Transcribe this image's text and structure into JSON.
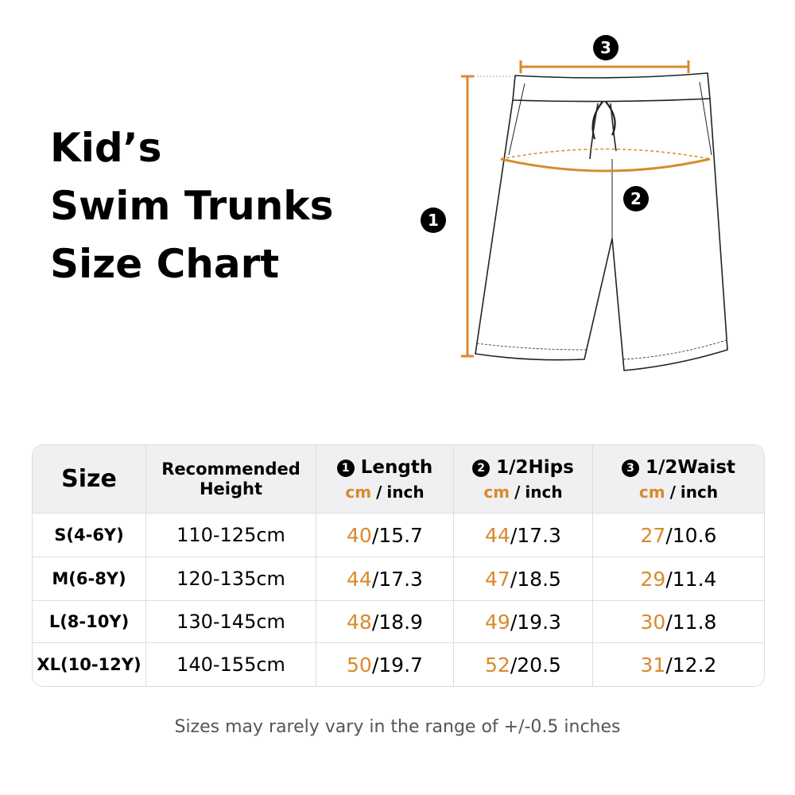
{
  "title": [
    "Kid’s",
    "Swim Trunks",
    "Size Chart"
  ],
  "diagram": {
    "markers": [
      "1",
      "2",
      "3"
    ]
  },
  "table": {
    "size_header": "Size",
    "height_header": "Recommended Height",
    "separator": "/",
    "measures": [
      {
        "marker": "1",
        "label": "Length",
        "unit_cm": "cm",
        "unit_inch": "inch"
      },
      {
        "marker": "2",
        "label": "1/2Hips",
        "unit_cm": "cm",
        "unit_inch": "inch"
      },
      {
        "marker": "3",
        "label": "1/2Waist",
        "unit_cm": "cm",
        "unit_inch": "inch"
      }
    ],
    "rows": [
      {
        "size": "S(4-6Y)",
        "height": "110-125cm",
        "values": [
          [
            40,
            15.7
          ],
          [
            44,
            17.3
          ],
          [
            27,
            10.6
          ]
        ]
      },
      {
        "size": "M(6-8Y)",
        "height": "120-135cm",
        "values": [
          [
            44,
            17.3
          ],
          [
            47,
            18.5
          ],
          [
            29,
            11.4
          ]
        ]
      },
      {
        "size": "L(8-10Y)",
        "height": "130-145cm",
        "values": [
          [
            48,
            18.9
          ],
          [
            49,
            19.3
          ],
          [
            30,
            11.8
          ]
        ]
      },
      {
        "size": "XL(10-12Y)",
        "height": "140-155cm",
        "values": [
          [
            50,
            19.7
          ],
          [
            52,
            20.5
          ],
          [
            31,
            12.2
          ]
        ]
      }
    ]
  },
  "footnote": "Sizes may rarely vary in the range of +/-0.5 inches"
}
